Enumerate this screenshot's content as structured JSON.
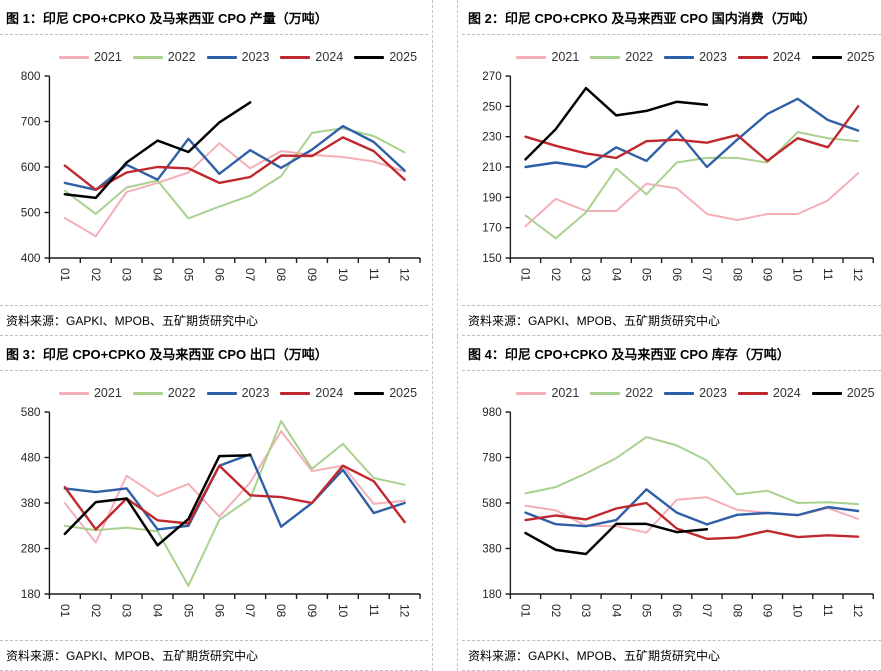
{
  "page": {
    "source_label": "资料来源：GAPKI、MPOB、五矿期货研究中心"
  },
  "legend": {
    "years": [
      "2021",
      "2022",
      "2023",
      "2024",
      "2025"
    ],
    "colors": {
      "2021": "#F4AFB7",
      "2022": "#A9D18E",
      "2023": "#2E5FA7",
      "2024": "#C0282D",
      "2025": "#000000"
    }
  },
  "chart_data": [
    {
      "id": "fig1",
      "type": "line",
      "title": "图 1：印尼 CPO+CPKO 及马来西亚 CPO 产量（万吨）",
      "ylabel": "万吨",
      "x_labels": [
        "01",
        "02",
        "03",
        "04",
        "05",
        "06",
        "07",
        "08",
        "09",
        "10",
        "11",
        "12"
      ],
      "ylim": [
        400,
        800
      ],
      "ystep": 100,
      "grid": false,
      "legend_position": "top",
      "series": [
        {
          "name": "2021",
          "values": [
            488,
            448,
            545,
            565,
            588,
            652,
            597,
            635,
            627,
            622,
            612,
            590
          ]
        },
        {
          "name": "2022",
          "values": [
            548,
            497,
            555,
            570,
            487,
            513,
            537,
            580,
            675,
            685,
            668,
            632
          ]
        },
        {
          "name": "2023",
          "values": [
            565,
            550,
            605,
            572,
            662,
            585,
            637,
            598,
            638,
            690,
            655,
            592
          ]
        },
        {
          "name": "2024",
          "values": [
            603,
            550,
            588,
            600,
            597,
            565,
            578,
            625,
            624,
            665,
            635,
            572
          ]
        },
        {
          "name": "2025",
          "values": [
            540,
            532,
            610,
            658,
            633,
            698,
            742
          ]
        }
      ]
    },
    {
      "id": "fig2",
      "type": "line",
      "title": "图 2：印尼 CPO+CPKO 及马来西亚 CPO 国内消费（万吨）",
      "ylabel": "万吨",
      "x_labels": [
        "01",
        "02",
        "03",
        "04",
        "05",
        "06",
        "07",
        "08",
        "09",
        "10",
        "11",
        "12"
      ],
      "ylim": [
        150,
        270
      ],
      "ystep": 20,
      "grid": false,
      "legend_position": "top",
      "series": [
        {
          "name": "2021",
          "values": [
            171,
            189,
            181,
            181,
            199,
            196,
            179,
            175,
            179,
            179,
            188,
            206
          ]
        },
        {
          "name": "2022",
          "values": [
            178,
            163,
            180,
            209,
            192,
            213,
            216,
            216,
            213,
            233,
            229,
            227
          ]
        },
        {
          "name": "2023",
          "values": [
            210,
            213,
            210,
            223,
            214,
            234,
            210,
            228,
            245,
            255,
            241,
            234
          ]
        },
        {
          "name": "2024",
          "values": [
            230,
            224,
            219,
            216,
            227,
            228,
            226,
            231,
            214,
            229,
            223,
            250
          ]
        },
        {
          "name": "2025",
          "values": [
            215,
            235,
            262,
            244,
            247,
            253,
            251
          ]
        }
      ]
    },
    {
      "id": "fig3",
      "type": "line",
      "title": "图 3：印尼 CPO+CPKO 及马来西亚 CPO 出口（万吨）",
      "ylabel": "万吨",
      "x_labels": [
        "01",
        "02",
        "03",
        "04",
        "05",
        "06",
        "07",
        "08",
        "09",
        "10",
        "11",
        "12"
      ],
      "ylim": [
        180,
        580
      ],
      "ystep": 100,
      "grid": false,
      "legend_position": "top",
      "series": [
        {
          "name": "2021",
          "values": [
            380,
            293,
            440,
            395,
            422,
            350,
            425,
            538,
            450,
            462,
            378,
            385
          ]
        },
        {
          "name": "2022",
          "values": [
            330,
            320,
            326,
            318,
            198,
            343,
            390,
            560,
            455,
            510,
            435,
            420
          ]
        },
        {
          "name": "2023",
          "values": [
            412,
            404,
            412,
            322,
            330,
            462,
            487,
            328,
            380,
            453,
            358,
            380
          ]
        },
        {
          "name": "2024",
          "values": [
            415,
            322,
            390,
            342,
            335,
            462,
            397,
            393,
            380,
            462,
            428,
            338
          ]
        },
        {
          "name": "2025",
          "values": [
            312,
            382,
            390,
            287,
            345,
            483,
            485
          ]
        }
      ]
    },
    {
      "id": "fig4",
      "type": "line",
      "title": "图 4：印尼 CPO+CPKO 及马来西亚 CPO 库存（万吨）",
      "ylabel": "万吨",
      "x_labels": [
        "01",
        "02",
        "03",
        "04",
        "05",
        "06",
        "07",
        "08",
        "09",
        "10",
        "11",
        "12"
      ],
      "ylim": [
        180,
        980
      ],
      "ystep": 200,
      "grid": false,
      "legend_position": "top",
      "series": [
        {
          "name": "2021",
          "values": [
            568,
            548,
            480,
            478,
            450,
            594,
            605,
            550,
            537,
            525,
            558,
            510
          ]
        },
        {
          "name": "2022",
          "values": [
            622,
            650,
            710,
            777,
            870,
            833,
            767,
            618,
            634,
            580,
            583,
            575
          ]
        },
        {
          "name": "2023",
          "values": [
            538,
            487,
            478,
            505,
            640,
            538,
            486,
            528,
            536,
            527,
            562,
            545
          ]
        },
        {
          "name": "2024",
          "values": [
            505,
            525,
            508,
            556,
            580,
            468,
            422,
            428,
            458,
            430,
            438,
            432
          ]
        },
        {
          "name": "2025",
          "values": [
            448,
            374,
            356,
            488,
            488,
            452,
            465
          ]
        }
      ]
    }
  ]
}
